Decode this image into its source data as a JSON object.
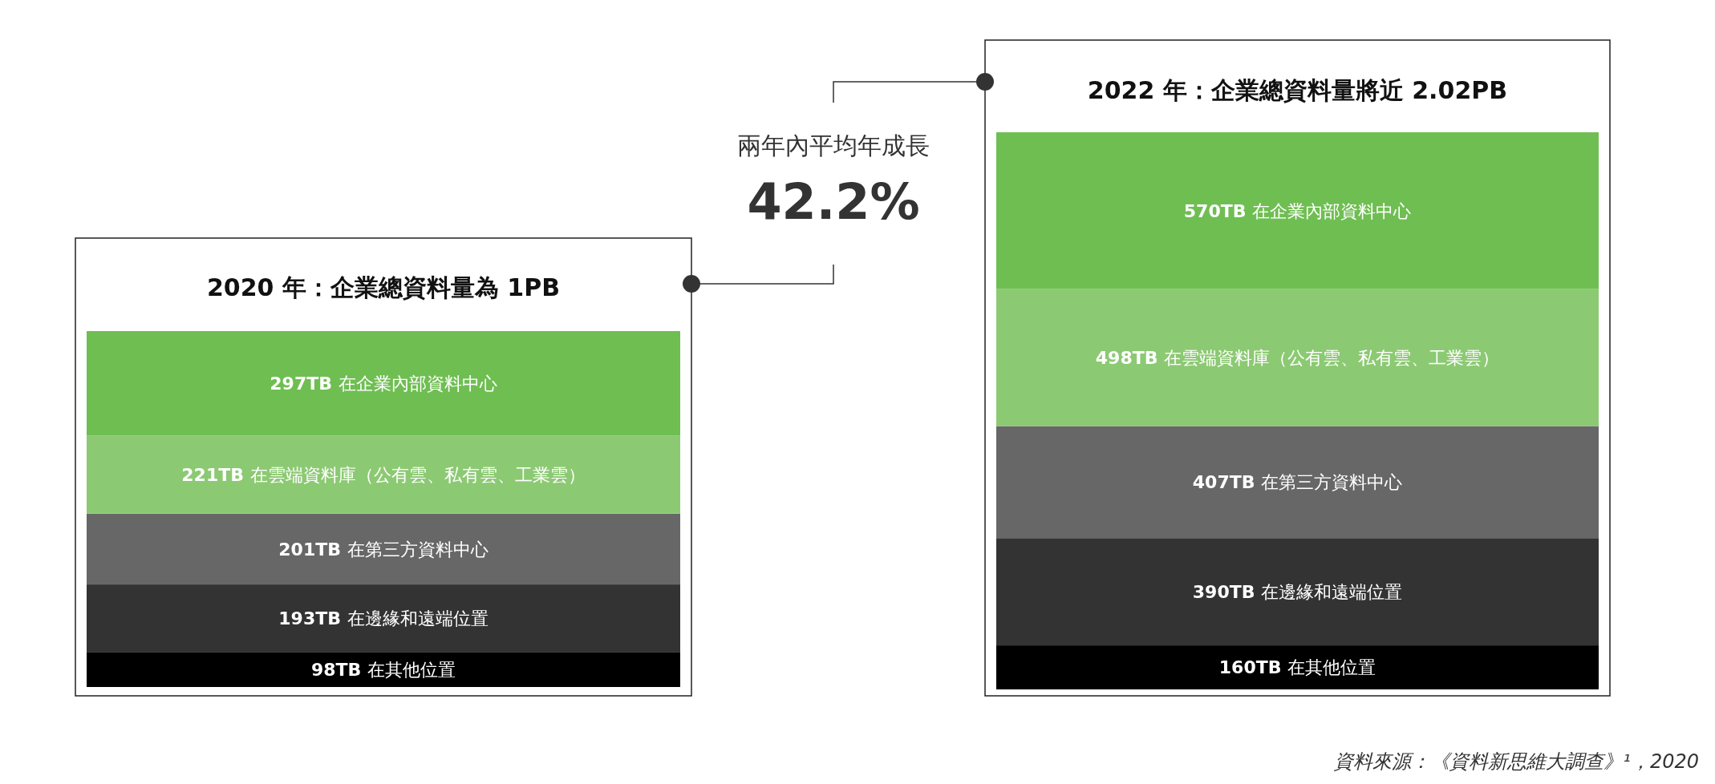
{
  "chart_data": [
    {
      "type": "bar",
      "stacked": true,
      "title": "2020 年：企業總資料量為 1PB",
      "categories": [
        null
      ],
      "series": [
        {
          "name": "在其他位置",
          "color": "#000000",
          "values": [
            98
          ],
          "value_labels": [
            "98TB"
          ]
        },
        {
          "name": "在邊緣和遠端位置",
          "color": "#333333",
          "values": [
            193
          ],
          "value_labels": [
            "193TB"
          ]
        },
        {
          "name": "在第三方資料中心",
          "color": "#666766",
          "values": [
            201
          ],
          "value_labels": [
            "201TB"
          ]
        },
        {
          "name": "在雲端資料庫（公有雲、私有雲、工業雲）",
          "color": "#8cc973",
          "values": [
            221
          ],
          "value_labels": [
            "221TB"
          ]
        },
        {
          "name": "在企業內部資料中心",
          "color": "#6fbe52",
          "values": [
            297
          ],
          "value_labels": [
            "297TB"
          ]
        }
      ]
    },
    {
      "type": "bar",
      "stacked": true,
      "title": "2022 年：企業總資料量將近 2.02PB",
      "categories": [
        null
      ],
      "series": [
        {
          "name": "在其他位置",
          "color": "#000000",
          "values": [
            160
          ],
          "value_labels": [
            "160TB"
          ]
        },
        {
          "name": "在邊緣和遠端位置",
          "color": "#333333",
          "values": [
            390
          ],
          "value_labels": [
            "390TB"
          ]
        },
        {
          "name": "在第三方資料中心",
          "color": "#666766",
          "values": [
            407
          ],
          "value_labels": [
            "407TB"
          ]
        },
        {
          "name": "在雲端資料庫（公有雲、私有雲、工業雲）",
          "color": "#8cc973",
          "values": [
            498
          ],
          "value_labels": [
            "498TB"
          ]
        },
        {
          "name": "在企業內部資料中心",
          "color": "#6fbe52",
          "values": [
            570
          ],
          "value_labels": [
            "570TB"
          ]
        }
      ]
    },
    {
      "type": "other",
      "annotations": [
        "兩年內平均年成長",
        "42.2%",
        "資料來源：《資料新思維大調查》¹，2020"
      ]
    }
  ]
}
